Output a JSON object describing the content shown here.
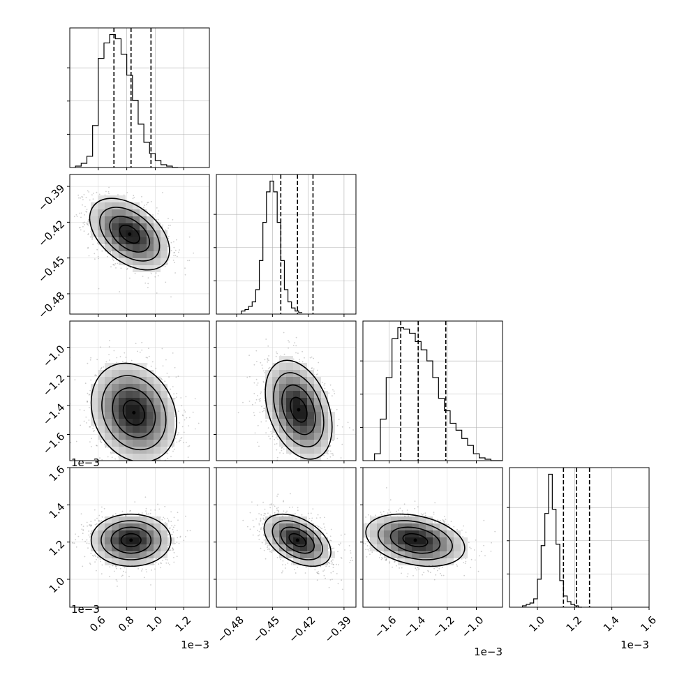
{
  "chart_data": {
    "type": "corner",
    "grid": true,
    "parameters": [
      {
        "index": 0,
        "range": [
          0.4,
          1.38
        ],
        "ticks": [
          0.6,
          0.8,
          1.0,
          1.2
        ],
        "tick_labels": [
          "0.6",
          "0.8",
          "1.0",
          "1.2"
        ],
        "offset_label": "1e−3"
      },
      {
        "index": 1,
        "range": [
          -0.497,
          -0.38
        ],
        "ticks": [
          -0.48,
          -0.45,
          -0.42,
          -0.39
        ],
        "tick_labels": [
          "−0.48",
          "−0.45",
          "−0.42",
          "−0.39"
        ],
        "offset_label": ""
      },
      {
        "index": 2,
        "range": [
          -1.78,
          -0.82
        ],
        "ticks": [
          -1.6,
          -1.4,
          -1.2,
          -1.0
        ],
        "tick_labels": [
          "−1.6",
          "−1.4",
          "−1.2",
          "−1.0"
        ],
        "offset_label": "1e−3"
      },
      {
        "index": 3,
        "range": [
          0.85,
          1.6
        ],
        "ticks": [
          1.0,
          1.2,
          1.4,
          1.6
        ],
        "tick_labels": [
          "1.0",
          "1.2",
          "1.4",
          "1.6"
        ],
        "offset_label": "1e−3"
      }
    ],
    "marginals": [
      {
        "param": 0,
        "quantiles": [
          0.71,
          0.83,
          0.97
        ],
        "bin_start": 0.44,
        "bin_width": 0.04,
        "counts": [
          1,
          3,
          8,
          30,
          78,
          89,
          95,
          92,
          81,
          66,
          48,
          31,
          18,
          10,
          5,
          2,
          1,
          0
        ]
      },
      {
        "param": 1,
        "quantiles": [
          -0.443,
          -0.429,
          -0.416
        ],
        "bin_start": -0.476,
        "bin_width": 0.003,
        "counts": [
          2,
          3,
          5,
          8,
          16,
          35,
          60,
          80,
          87,
          80,
          60,
          35,
          16,
          8,
          4,
          2,
          1
        ]
      },
      {
        "param": 2,
        "quantiles": [
          -1.52,
          -1.4,
          -1.21
        ],
        "bin_start": -1.7,
        "bin_width": 0.04,
        "counts": [
          5,
          30,
          60,
          88,
          96,
          95,
          92,
          86,
          80,
          72,
          60,
          45,
          36,
          27,
          22,
          16,
          11,
          5,
          2,
          1,
          0,
          0
        ]
      },
      {
        "param": 3,
        "quantiles": [
          1.14,
          1.21,
          1.28
        ],
        "bin_start": 0.92,
        "bin_width": 0.02,
        "counts": [
          1,
          2,
          3,
          6,
          20,
          44,
          67,
          95,
          70,
          45,
          19,
          8,
          4,
          2,
          1,
          0
        ]
      }
    ],
    "joints": [
      {
        "x": 0,
        "y": 1,
        "center": [
          0.82,
          -0.43
        ],
        "sigma": [
          0.14,
          0.015
        ],
        "rho": -0.45
      },
      {
        "x": 0,
        "y": 2,
        "center": [
          0.85,
          -1.45
        ],
        "sigma": [
          0.15,
          0.17
        ],
        "rho": -0.2
      },
      {
        "x": 1,
        "y": 2,
        "center": [
          -0.428,
          -1.43
        ],
        "sigma": [
          0.014,
          0.17
        ],
        "rho": -0.35
      },
      {
        "x": 0,
        "y": 3,
        "center": [
          0.83,
          1.21
        ],
        "sigma": [
          0.14,
          0.07
        ],
        "rho": 0.0
      },
      {
        "x": 1,
        "y": 3,
        "center": [
          -0.429,
          1.21
        ],
        "sigma": [
          0.014,
          0.07
        ],
        "rho": -0.45
      },
      {
        "x": 2,
        "y": 3,
        "center": [
          -1.42,
          1.21
        ],
        "sigma": [
          0.17,
          0.07
        ],
        "rho": -0.3
      }
    ]
  }
}
